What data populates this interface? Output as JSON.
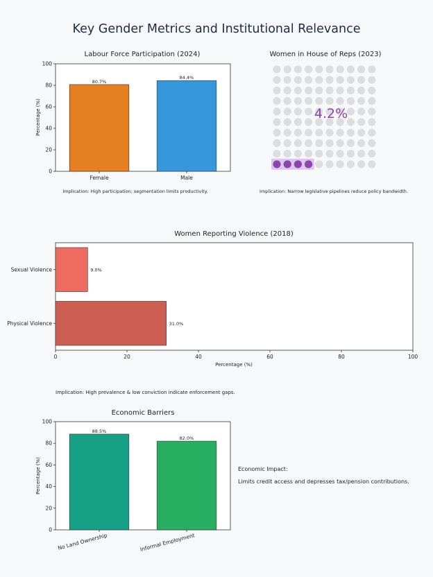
{
  "main_title": "Key Gender Metrics and Institutional Relevance",
  "colors": {
    "female": "#e67e22",
    "male": "#3498db",
    "waffle_filled": "#8e44ad",
    "waffle_empty": "#dddddd",
    "sexual_violence": "#ee6b60",
    "physical_violence": "#cd5f52",
    "no_land": "#16a085",
    "informal": "#27ae60"
  },
  "chart_data": [
    {
      "id": "labour",
      "type": "bar",
      "title": "Labour Force Participation (2024)",
      "categories": [
        "Female",
        "Male"
      ],
      "values": [
        80.7,
        84.4
      ],
      "value_labels": [
        "80.7%",
        "84.4%"
      ],
      "ylabel": "Percentage (%)",
      "ylim": [
        0,
        100
      ],
      "yticks": [
        "0",
        "20",
        "40",
        "60",
        "80",
        "100"
      ],
      "note": "Implication: High participation; segmentation limits productivity."
    },
    {
      "id": "reps",
      "type": "waffle",
      "title": "Women in House of Reps (2023)",
      "value": 4.2,
      "value_label": "4.2%",
      "grid": [
        10,
        10
      ],
      "filled_count": 4,
      "note": "Implication: Narrow legislative pipelines reduce policy bandwidth."
    },
    {
      "id": "violence",
      "type": "bar",
      "orientation": "horizontal",
      "title": "Women Reporting Violence (2018)",
      "categories": [
        "Physical Violence",
        "Sexual Violence"
      ],
      "values": [
        31.0,
        9.0
      ],
      "value_labels": [
        "31.0%",
        "9.0%"
      ],
      "xlabel": "Percentage (%)",
      "xlim": [
        0,
        100
      ],
      "xticks": [
        "0",
        "20",
        "40",
        "60",
        "80",
        "100"
      ],
      "note": "Implication: High prevalence & low conviction indicate enforcement gaps."
    },
    {
      "id": "econ",
      "type": "bar",
      "title": "Economic Barriers",
      "categories": [
        "No Land Ownership",
        "Informal Employment"
      ],
      "values": [
        88.5,
        82.0
      ],
      "value_labels": [
        "88.5%",
        "82.0%"
      ],
      "ylabel": "Percentage (%)",
      "ylim": [
        0,
        100
      ],
      "yticks": [
        "0",
        "20",
        "40",
        "60",
        "80",
        "100"
      ]
    }
  ],
  "economic_impact": {
    "heading": "Economic Impact:",
    "text": "Limits credit access and depresses tax/pension contributions."
  }
}
